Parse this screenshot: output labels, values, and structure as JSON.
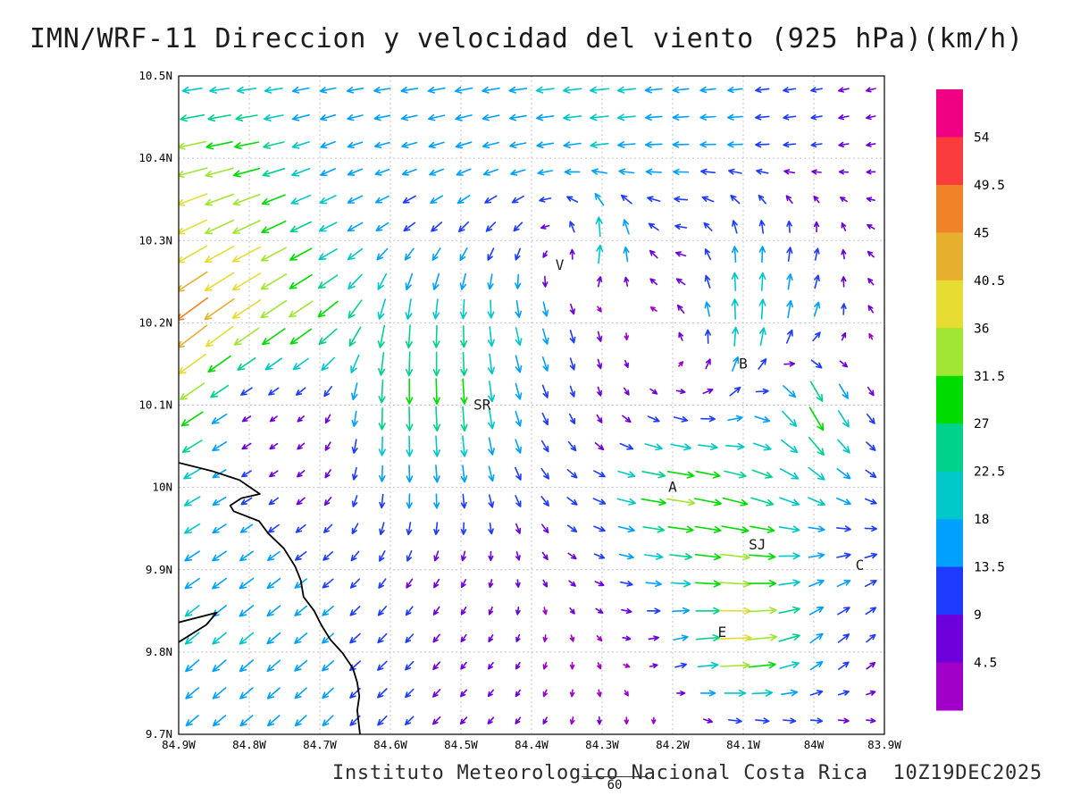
{
  "chart_data": {
    "type": "vector_field",
    "title": "IMN/WRF-11 Direccion y velocidad del viento (925 hPa)(km/h)",
    "footer": "Instituto Meteorologico Nacional Costa Rica  10Z19DEC2025",
    "forecast_hour": "60",
    "valid_time": "10Z19DEC2025",
    "units": "km/h",
    "pressure_level": "925 hPa",
    "gridlines": "dotted",
    "x_axis": {
      "ticks": [
        "84.9W",
        "84.8W",
        "84.7W",
        "84.6W",
        "84.5W",
        "84.4W",
        "84.3W",
        "84.2W",
        "84.1W",
        "84W",
        "83.9W"
      ],
      "range_deg_west": [
        84.9,
        83.9
      ]
    },
    "y_axis": {
      "ticks": [
        "10.5N",
        "10.4N",
        "10.3N",
        "10.2N",
        "10.1N",
        "10N",
        "9.9N",
        "9.8N",
        "9.7N"
      ],
      "range_deg_north": [
        10.5,
        9.7
      ]
    },
    "colorbar": {
      "units": "km/h",
      "levels": [
        4.5,
        9,
        13.5,
        18,
        22.5,
        27,
        31.5,
        36,
        40.5,
        45,
        49.5,
        54
      ],
      "colors": [
        "#a000c8",
        "#6e00dc",
        "#1e3cff",
        "#00a0ff",
        "#00c8c8",
        "#00d28c",
        "#00dc00",
        "#a0e632",
        "#e6dc32",
        "#e6af2d",
        "#f08228",
        "#fa3c3c",
        "#f00082"
      ]
    },
    "stations": [
      {
        "label": "V",
        "lon_w": 84.36,
        "lat_n": 10.27
      },
      {
        "label": "B",
        "lon_w": 84.1,
        "lat_n": 10.15
      },
      {
        "label": "SR",
        "lon_w": 84.47,
        "lat_n": 10.1
      },
      {
        "label": "A",
        "lon_w": 84.2,
        "lat_n": 10.0
      },
      {
        "label": "SJ",
        "lon_w": 84.08,
        "lat_n": 9.93
      },
      {
        "label": "C",
        "lon_w": 83.935,
        "lat_n": 9.905
      },
      {
        "label": "E",
        "lon_w": 84.13,
        "lat_n": 9.824
      }
    ],
    "coastline": {
      "segments": [
        [
          [
            84.9,
            10.03
          ],
          [
            84.853,
            10.02
          ],
          [
            84.814,
            10.009
          ],
          [
            84.785,
            9.992
          ],
          [
            84.811,
            9.987
          ],
          [
            84.827,
            9.978
          ],
          [
            84.822,
            9.971
          ],
          [
            84.786,
            9.959
          ],
          [
            84.773,
            9.944
          ],
          [
            84.751,
            9.926
          ],
          [
            84.735,
            9.904
          ],
          [
            84.727,
            9.887
          ],
          [
            84.723,
            9.867
          ],
          [
            84.708,
            9.85
          ],
          [
            84.698,
            9.833
          ],
          [
            84.685,
            9.815
          ],
          [
            84.668,
            9.799
          ],
          [
            84.653,
            9.78
          ],
          [
            84.647,
            9.763
          ],
          [
            84.644,
            9.746
          ],
          [
            84.647,
            9.729
          ],
          [
            84.643,
            9.7
          ]
        ],
        [
          [
            84.9,
            9.836
          ],
          [
            84.846,
            9.848
          ],
          [
            84.861,
            9.833
          ],
          [
            84.9,
            9.812
          ]
        ]
      ]
    },
    "wind_field": {
      "description": "Coarse control grid of wind components read from the map; u positive eastward, v positive northward, km/h",
      "lat_n": [
        10.5,
        10.4,
        10.3,
        10.2,
        10.1,
        10.0,
        9.9,
        9.8,
        9.7
      ],
      "lon_w": [
        84.9,
        84.8,
        84.7,
        84.6,
        84.5,
        84.4,
        84.3,
        84.2,
        84.1,
        84.0,
        83.9
      ],
      "u_kmh": [
        [
          -18,
          -18,
          -16,
          -17,
          -18,
          -18,
          -20,
          -16,
          -14,
          -10,
          -7
        ],
        [
          -36,
          -28,
          -14,
          -14,
          -15,
          -16,
          -18,
          -16,
          -14,
          -9,
          -6
        ],
        [
          -34,
          -32,
          -20,
          -10,
          -8,
          -5,
          2,
          -10,
          0,
          2,
          -6
        ],
        [
          -38,
          -32,
          -25,
          -3,
          0,
          5,
          2,
          -5,
          0,
          5,
          -5
        ],
        [
          -30,
          -5,
          -4,
          0,
          2,
          5,
          2,
          8,
          12,
          15,
          4
        ],
        [
          -18,
          -8,
          -5,
          0,
          2,
          6,
          12,
          35,
          25,
          18,
          8
        ],
        [
          -15,
          -14,
          -10,
          -5,
          -3,
          2,
          8,
          20,
          36,
          15,
          10
        ],
        [
          -14,
          -14,
          -12,
          -8,
          -4,
          -2,
          2,
          8,
          42,
          12,
          6
        ],
        [
          -12,
          -12,
          -10,
          -8,
          -5,
          -3,
          0,
          -2,
          8,
          10,
          6
        ]
      ],
      "v_kmh": [
        [
          -2,
          -2,
          -3,
          -2,
          -3,
          -2,
          -2,
          -2,
          -2,
          -2,
          -2
        ],
        [
          -8,
          -6,
          -6,
          -4,
          -5,
          -3,
          -2,
          0,
          0,
          -1,
          -1
        ],
        [
          -18,
          -16,
          -10,
          -8,
          -10,
          -8,
          26,
          0,
          16,
          10,
          2
        ],
        [
          -30,
          -22,
          -18,
          -25,
          -22,
          -18,
          -8,
          5,
          25,
          15,
          3
        ],
        [
          -20,
          -3,
          -4,
          -28,
          -30,
          -12,
          -6,
          -4,
          6,
          -30,
          -4
        ],
        [
          -10,
          -5,
          -5,
          -15,
          -15,
          -10,
          -5,
          -5,
          -8,
          -10,
          -5
        ],
        [
          -10,
          -10,
          -8,
          -8,
          -6,
          -5,
          -3,
          -2,
          -3,
          5,
          5
        ],
        [
          -12,
          -12,
          -10,
          -8,
          -5,
          -4,
          -3,
          4,
          2,
          10,
          6
        ],
        [
          -10,
          -10,
          -10,
          -8,
          -5,
          -4,
          -5,
          -4,
          -2,
          -3,
          -2
        ]
      ]
    },
    "vector_grid": {
      "cols": 26,
      "rows": 24
    }
  }
}
